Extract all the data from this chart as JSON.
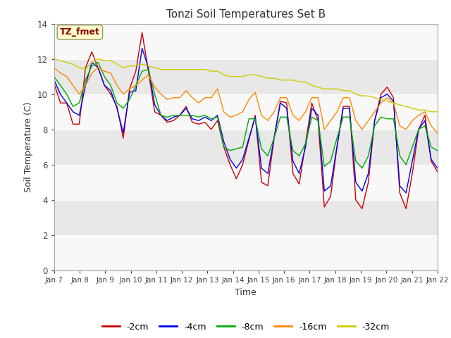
{
  "title": "Tonzi Soil Temperatures Set B",
  "xlabel": "Time",
  "ylabel": "Soil Temperature (C)",
  "xlim": [
    0,
    15
  ],
  "ylim": [
    0,
    14
  ],
  "yticks": [
    0,
    2,
    4,
    6,
    8,
    10,
    12,
    14
  ],
  "xtick_labels": [
    "Jan 7",
    "Jan 8",
    "Jan 9",
    "Jan 10",
    "Jan 11",
    "Jan 12",
    "Jan 13",
    "Jan 14",
    "Jan 15",
    "Jan 16",
    "Jan 17",
    "Jan 18",
    "Jan 19",
    "Jan 20",
    "Jan 21",
    "Jan 22"
  ],
  "legend_labels": [
    "-2cm",
    "-4cm",
    "-8cm",
    "-16cm",
    "-32cm"
  ],
  "colors": [
    "#cc0000",
    "#0000ee",
    "#00aa00",
    "#ff8800",
    "#cccc00"
  ],
  "annotation_text": "TZ_fmet",
  "annotation_color": "#880000",
  "annotation_bg": "#ffffcc",
  "fig_bg": "#ffffff",
  "plot_bg_light": "#f8f8f8",
  "plot_bg_dark": "#e8e8e8",
  "series": {
    "cm2": [
      10.6,
      9.5,
      9.5,
      8.3,
      8.3,
      11.5,
      12.4,
      11.5,
      10.5,
      10.0,
      9.3,
      7.5,
      10.3,
      11.3,
      13.5,
      11.3,
      9.0,
      8.8,
      8.4,
      8.5,
      8.8,
      9.3,
      8.4,
      8.3,
      8.4,
      8.0,
      8.5,
      7.0,
      6.0,
      5.2,
      6.0,
      7.4,
      8.8,
      5.0,
      4.8,
      7.5,
      9.6,
      9.5,
      5.5,
      4.9,
      7.2,
      9.5,
      8.5,
      3.6,
      4.2,
      7.0,
      9.3,
      9.3,
      4.0,
      3.5,
      5.0,
      8.5,
      10.0,
      10.4,
      9.8,
      4.4,
      3.5,
      5.5,
      8.0,
      8.8,
      6.2,
      5.6
    ],
    "cm4": [
      10.8,
      10.0,
      9.5,
      9.0,
      8.8,
      10.5,
      11.8,
      11.5,
      10.5,
      10.2,
      9.2,
      7.8,
      10.1,
      10.2,
      12.6,
      11.5,
      9.4,
      8.8,
      8.5,
      8.7,
      8.8,
      9.2,
      8.6,
      8.5,
      8.7,
      8.5,
      8.8,
      7.3,
      6.3,
      5.8,
      6.3,
      7.5,
      8.7,
      5.8,
      5.5,
      7.5,
      9.5,
      9.2,
      6.2,
      5.5,
      7.0,
      9.2,
      8.8,
      4.5,
      4.8,
      7.0,
      9.2,
      9.2,
      5.0,
      4.5,
      5.5,
      8.5,
      9.8,
      10.0,
      9.6,
      4.8,
      4.4,
      6.2,
      8.0,
      8.5,
      6.3,
      5.8
    ],
    "cm8": [
      11.0,
      10.5,
      10.0,
      9.3,
      9.5,
      10.8,
      11.6,
      11.8,
      11.0,
      10.5,
      9.5,
      9.2,
      9.7,
      10.5,
      11.3,
      11.4,
      10.0,
      8.8,
      8.7,
      8.8,
      8.8,
      8.8,
      8.8,
      8.7,
      8.8,
      8.6,
      8.7,
      7.0,
      6.8,
      6.9,
      7.0,
      8.6,
      8.6,
      6.9,
      6.5,
      7.5,
      8.7,
      8.7,
      6.8,
      6.5,
      7.2,
      8.7,
      8.5,
      5.9,
      6.2,
      7.5,
      8.7,
      8.7,
      6.2,
      5.8,
      6.5,
      8.2,
      8.7,
      8.6,
      8.6,
      6.5,
      6.0,
      7.0,
      8.0,
      8.2,
      7.0,
      6.8
    ],
    "cm16": [
      11.5,
      11.2,
      11.0,
      10.5,
      10.0,
      10.5,
      11.2,
      11.5,
      11.3,
      11.2,
      10.5,
      10.0,
      10.3,
      10.5,
      10.8,
      11.1,
      10.4,
      10.0,
      9.7,
      9.8,
      9.8,
      10.2,
      9.8,
      9.5,
      9.8,
      9.8,
      10.3,
      9.0,
      8.7,
      8.8,
      9.0,
      9.7,
      10.1,
      8.8,
      8.5,
      9.0,
      9.8,
      9.8,
      8.8,
      8.5,
      9.0,
      9.8,
      9.8,
      8.0,
      8.5,
      9.0,
      9.8,
      9.8,
      8.5,
      8.0,
      8.5,
      9.0,
      9.5,
      9.8,
      9.5,
      8.2,
      8.0,
      8.5,
      8.8,
      9.0,
      8.2,
      7.8
    ],
    "cm32": [
      12.0,
      11.9,
      11.8,
      11.7,
      11.5,
      11.4,
      11.8,
      12.0,
      11.9,
      11.9,
      11.7,
      11.5,
      11.6,
      11.6,
      11.7,
      11.6,
      11.5,
      11.4,
      11.4,
      11.4,
      11.4,
      11.4,
      11.4,
      11.4,
      11.4,
      11.3,
      11.3,
      11.1,
      11.0,
      11.0,
      11.0,
      11.1,
      11.1,
      11.0,
      10.9,
      10.9,
      10.8,
      10.8,
      10.8,
      10.7,
      10.7,
      10.5,
      10.4,
      10.3,
      10.3,
      10.3,
      10.2,
      10.2,
      10.0,
      9.9,
      9.9,
      9.8,
      9.7,
      9.6,
      9.5,
      9.4,
      9.3,
      9.2,
      9.1,
      9.1,
      9.0,
      9.0
    ]
  }
}
